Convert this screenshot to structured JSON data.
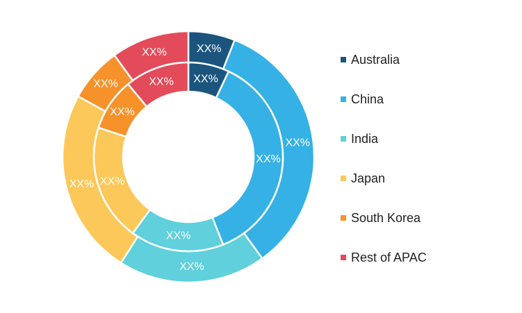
{
  "chart_data": {
    "type": "donut",
    "rings": [
      {
        "ring": "outer",
        "slices": [
          {
            "category": "Australia",
            "value": 6,
            "label": "XX%"
          },
          {
            "category": "China",
            "value": 34,
            "label": "XX%"
          },
          {
            "category": "India",
            "value": 19,
            "label": "XX%"
          },
          {
            "category": "Japan",
            "value": 24,
            "label": "XX%"
          },
          {
            "category": "South Korea",
            "value": 7,
            "label": "XX%"
          },
          {
            "category": "Rest of APAC",
            "value": 10,
            "label": "XX%"
          }
        ]
      },
      {
        "ring": "inner",
        "slices": [
          {
            "category": "Australia",
            "value": 7,
            "label": "XX%"
          },
          {
            "category": "China",
            "value": 37,
            "label": "XX%"
          },
          {
            "category": "India",
            "value": 16,
            "label": "XX%"
          },
          {
            "category": "Japan",
            "value": 20,
            "label": "XX%"
          },
          {
            "category": "South Korea",
            "value": 9,
            "label": "XX%"
          },
          {
            "category": "Rest of APAC",
            "value": 11,
            "label": "XX%"
          }
        ]
      }
    ],
    "legend": {
      "placement": "right",
      "entries": [
        {
          "label": "Australia",
          "color": "#1b557e"
        },
        {
          "label": "China",
          "color": "#35b1e5"
        },
        {
          "label": "India",
          "color": "#5fd0dc"
        },
        {
          "label": "Japan",
          "color": "#fdc85a"
        },
        {
          "label": "South Korea",
          "color": "#f7922b"
        },
        {
          "label": "Rest of APAC",
          "color": "#e44b5a"
        }
      ]
    }
  }
}
